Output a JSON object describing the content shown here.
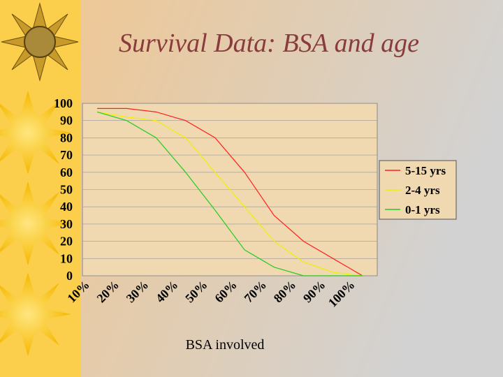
{
  "chart_data": {
    "type": "line",
    "title": "Survival Data: BSA and age",
    "x_label": "BSA involved",
    "categories": [
      "10%",
      "20%",
      "30%",
      "40%",
      "50%",
      "60%",
      "70%",
      "80%",
      "90%",
      "100%"
    ],
    "series": [
      {
        "name": "5-15 yrs",
        "color": "#ff2020",
        "values": [
          97,
          97,
          95,
          90,
          80,
          60,
          35,
          20,
          10,
          0
        ]
      },
      {
        "name": "2-4 yrs",
        "color": "#f0f000",
        "values": [
          95,
          92,
          90,
          80,
          60,
          40,
          20,
          8,
          2,
          0
        ]
      },
      {
        "name": "0-1 yrs",
        "color": "#22cc22",
        "values": [
          95,
          90,
          80,
          60,
          38,
          15,
          5,
          0,
          0,
          0
        ]
      }
    ],
    "ylim": [
      0,
      100
    ],
    "yticks": [
      0,
      10,
      20,
      30,
      40,
      50,
      60,
      70,
      80,
      90,
      100
    ],
    "grid": true,
    "legend": "right"
  }
}
